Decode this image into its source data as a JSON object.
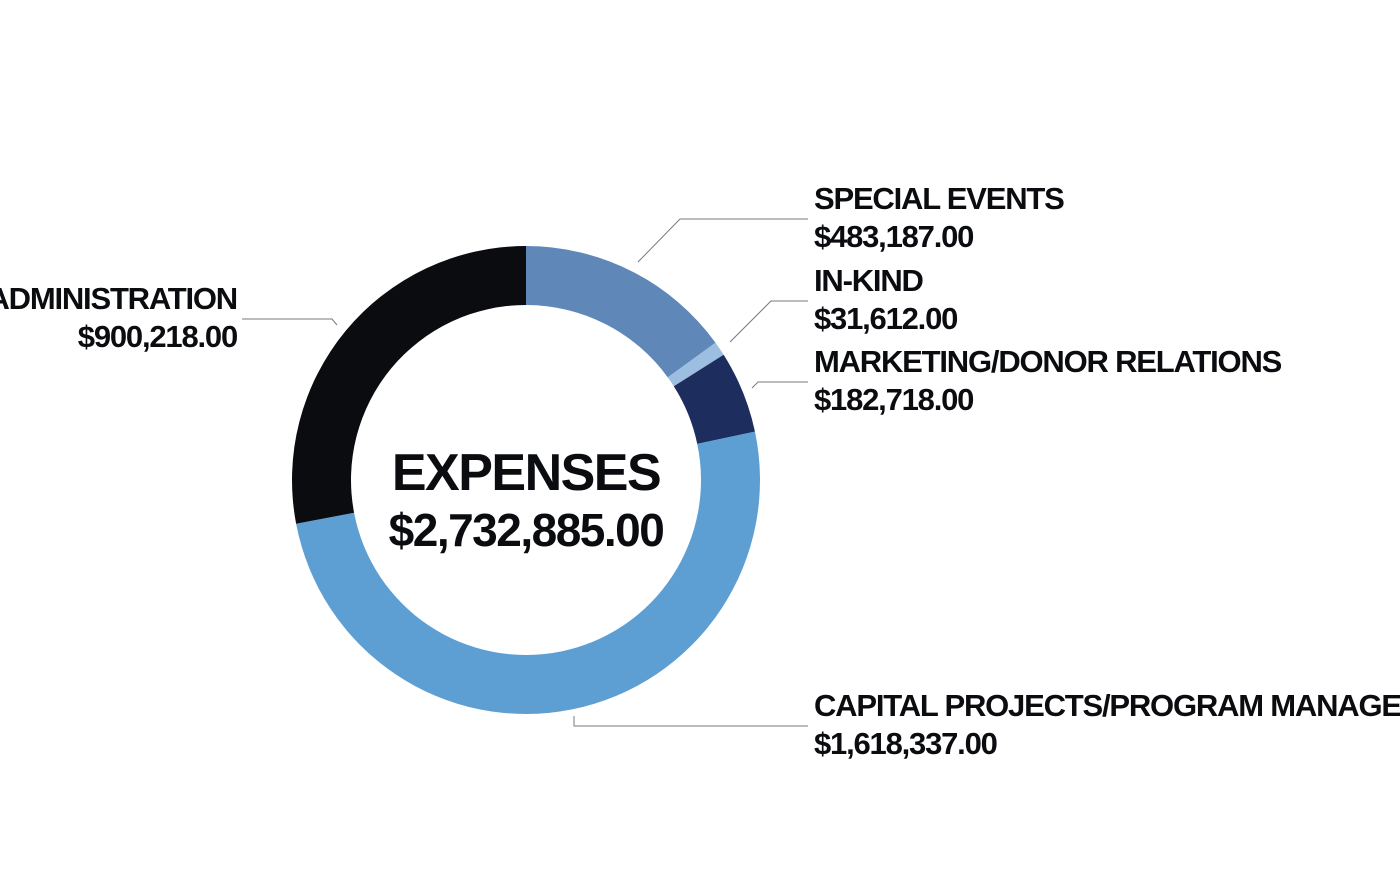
{
  "chart_data": {
    "type": "pie",
    "title": "EXPENSES",
    "total_label": "$2,732,885.00",
    "donut": true,
    "legend": "none",
    "slices": [
      {
        "name": "SPECIAL EVENTS",
        "value": 483187.0,
        "value_label": "$483,187.00",
        "color": "#5f88b8"
      },
      {
        "name": "IN-KIND",
        "value": 31612.0,
        "value_label": "$31,612.00",
        "color": "#9cbee0"
      },
      {
        "name": "MARKETING/DONOR RELATIONS",
        "value": 182718.0,
        "value_label": "$182,718.00",
        "color": "#1d2d5e"
      },
      {
        "name": "CAPITAL PROJECTS/PROGRAM MANAGEMENT",
        "value": 1618337.0,
        "value_label": "$1,618,337.00",
        "color": "#5d9ed3"
      },
      {
        "name": "ADMINISTRATION",
        "value": 900218.0,
        "value_label": "$900,218.00",
        "color": "#0b0c10"
      }
    ]
  }
}
